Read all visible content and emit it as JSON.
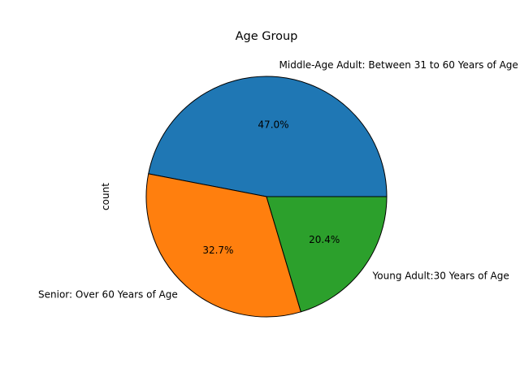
{
  "chart_data": {
    "type": "pie",
    "title": "Age Group",
    "ylabel": "count",
    "xlabel": "",
    "start_angle_deg": 0,
    "direction": "counterclockwise",
    "slices": [
      {
        "label": "Middle-Age Adult: Between 31 to 60 Years of Age",
        "percent": 47.0,
        "percent_label": "47.0%",
        "color": "#1f77b4"
      },
      {
        "label": "Senior: Over 60 Years of Age",
        "percent": 32.7,
        "percent_label": "32.7%",
        "color": "#ff7f0e"
      },
      {
        "label": "Young Adult:30 Years of Age",
        "percent": 20.4,
        "percent_label": "20.4%",
        "color": "#2ca02c"
      }
    ]
  }
}
